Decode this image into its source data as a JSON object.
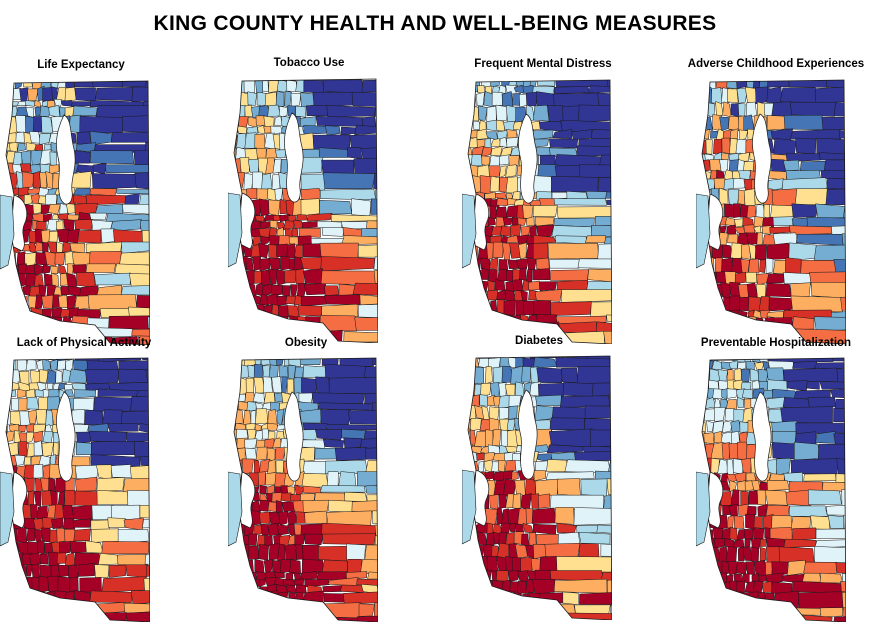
{
  "title": "KING COUNTY HEALTH AND WELL-BEING MEASURES",
  "palette": [
    "#313695",
    "#4575b4",
    "#74add1",
    "#abd9e9",
    "#e0f3f8",
    "#fee090",
    "#fdae61",
    "#f46d43",
    "#d73027",
    "#a50026"
  ],
  "water_color": "#ffffff",
  "panels": [
    {
      "title": "Life Expectancy",
      "seed": 11,
      "south_bias": 0.55,
      "west_bias": 0.25,
      "noise": 0.45
    },
    {
      "title": "Tobacco Use",
      "seed": 23,
      "south_bias": 0.65,
      "west_bias": 0.3,
      "noise": 0.3
    },
    {
      "title": "Frequent Mental Distress",
      "seed": 37,
      "south_bias": 0.6,
      "west_bias": 0.3,
      "noise": 0.3
    },
    {
      "title": "Adverse Childhood Experiences",
      "seed": 41,
      "south_bias": 0.5,
      "west_bias": 0.3,
      "noise": 0.45
    },
    {
      "title": "Lack of Physical Activity",
      "seed": 53,
      "south_bias": 0.7,
      "west_bias": 0.3,
      "noise": 0.25
    },
    {
      "title": "Obesity",
      "seed": 67,
      "south_bias": 0.7,
      "west_bias": 0.3,
      "noise": 0.25
    },
    {
      "title": "Diabetes",
      "seed": 79,
      "south_bias": 0.65,
      "west_bias": 0.3,
      "noise": 0.3
    },
    {
      "title": "Preventable Hospitalization",
      "seed": 83,
      "south_bias": 0.7,
      "west_bias": 0.3,
      "noise": 0.3
    }
  ]
}
